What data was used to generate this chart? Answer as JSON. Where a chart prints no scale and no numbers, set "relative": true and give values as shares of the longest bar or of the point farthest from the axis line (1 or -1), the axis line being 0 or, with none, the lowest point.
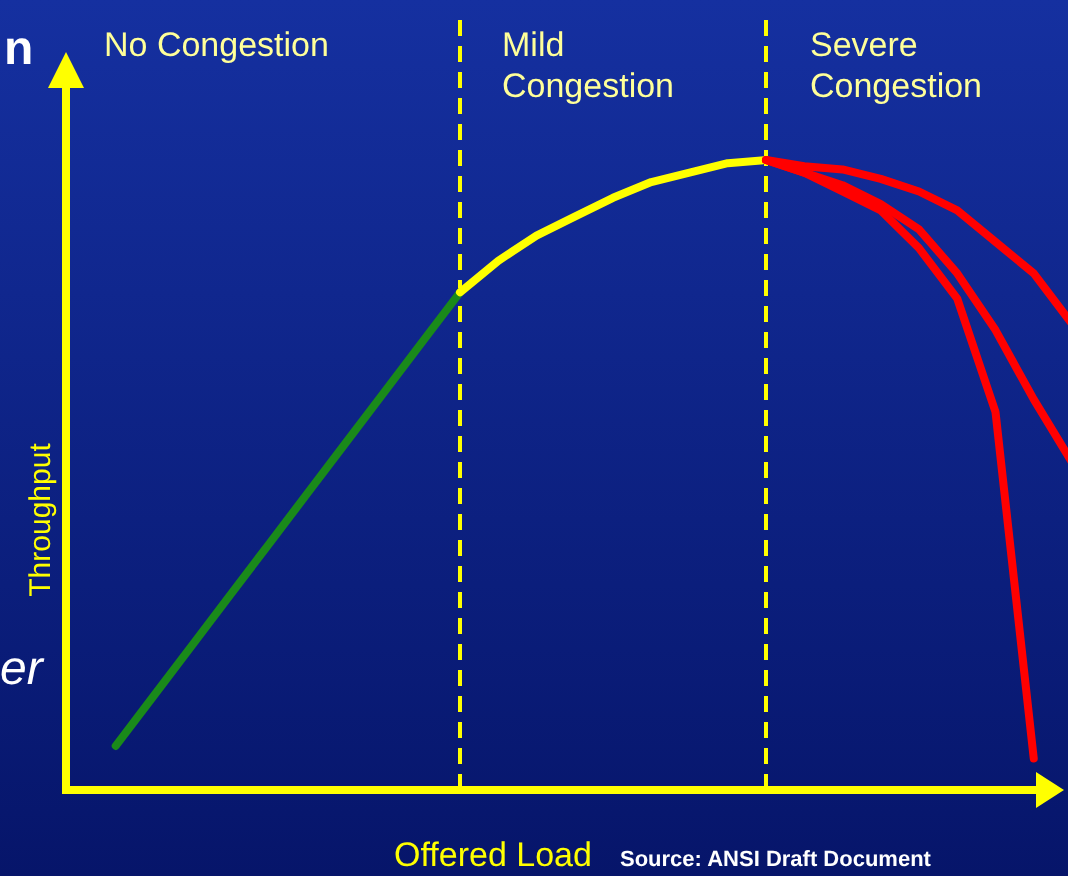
{
  "chart_data": {
    "type": "line",
    "relative": true,
    "xlabel": "Offered Load",
    "ylabel": "Throughput",
    "tick_labels": false,
    "line_style": "solid",
    "categories": [
      null,
      null,
      null,
      null,
      null,
      null,
      null,
      null,
      null,
      null,
      null,
      null,
      null,
      null,
      null,
      null,
      null,
      null,
      null,
      null,
      null,
      null,
      null,
      null,
      null,
      null,
      null
    ],
    "series": [
      {
        "color": "#1a8a1a",
        "values": [
          null,
          0.07,
          0.15,
          0.23,
          0.31,
          0.39,
          0.47,
          0.55,
          0.63,
          0.71,
          0.79,
          null,
          null,
          null,
          null,
          null,
          null,
          null,
          null,
          null,
          null,
          null,
          null,
          null,
          null,
          null,
          null
        ]
      },
      {
        "color": "#ffff00",
        "values": [
          null,
          null,
          null,
          null,
          null,
          null,
          null,
          null,
          null,
          null,
          0.79,
          0.84,
          0.88,
          0.91,
          0.94,
          0.965,
          0.98,
          0.995,
          1,
          null,
          null,
          null,
          null,
          null,
          null,
          null,
          null
        ]
      },
      {
        "color": "#ff0000",
        "values": [
          null,
          null,
          null,
          null,
          null,
          null,
          null,
          null,
          null,
          null,
          null,
          null,
          null,
          null,
          null,
          null,
          null,
          null,
          1,
          0.98,
          0.95,
          0.92,
          0.86,
          0.78,
          0.6,
          0.05,
          null
        ]
      },
      {
        "color": "#ff0000",
        "values": [
          null,
          null,
          null,
          null,
          null,
          null,
          null,
          null,
          null,
          null,
          null,
          null,
          null,
          null,
          null,
          null,
          null,
          null,
          1,
          0.98,
          0.96,
          0.93,
          0.89,
          0.82,
          0.73,
          0.62,
          0.52
        ]
      },
      {
        "color": "#ff0000",
        "values": [
          null,
          null,
          null,
          null,
          null,
          null,
          null,
          null,
          null,
          null,
          null,
          null,
          null,
          null,
          null,
          null,
          null,
          null,
          1,
          0.99,
          0.985,
          0.97,
          0.95,
          0.92,
          0.87,
          0.82,
          0.74
        ]
      }
    ],
    "annotations": [
      "No Congestion",
      "Mild Congestion",
      "Severe Congestion",
      "Source: ANSI Draft Document",
      "n",
      "er"
    ]
  }
}
